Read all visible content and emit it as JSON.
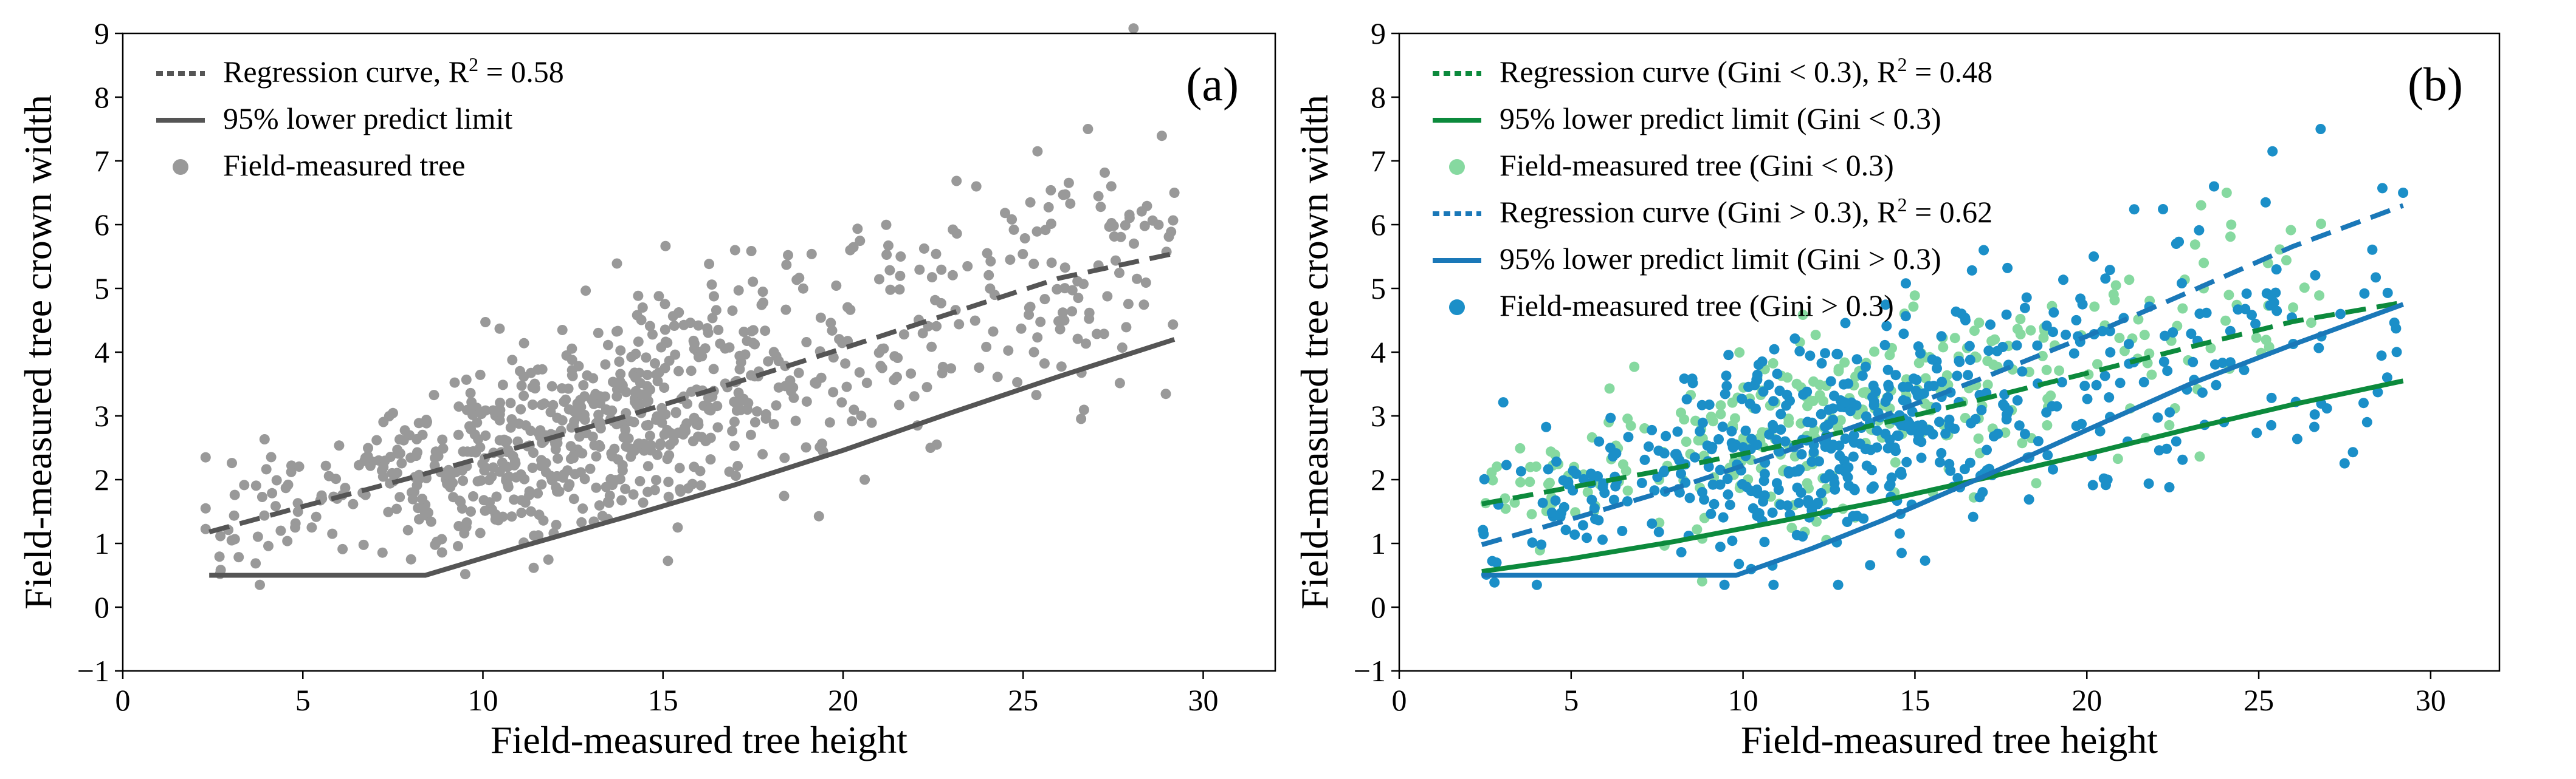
{
  "chart_data": [
    {
      "type": "scatter",
      "panel_label": "(a)",
      "xlabel": "Field-measured tree height",
      "ylabel": "Field-measured tree crown width",
      "xlim": [
        0,
        32
      ],
      "ylim": [
        -1,
        9
      ],
      "xticks": [
        0,
        5,
        10,
        15,
        20,
        25,
        30
      ],
      "yticks": [
        -1,
        0,
        1,
        2,
        3,
        4,
        5,
        6,
        7,
        8,
        9
      ],
      "grid": false,
      "legend_position": "top-left",
      "legend": [
        {
          "label": "Regression curve, R",
          "sup": "2",
          "suffix": " = 0.58",
          "style": "dotted",
          "color": "#555555"
        },
        {
          "label": " 95% lower predict limit",
          "style": "solid",
          "color": "#555555"
        },
        {
          "label": "Field-measured tree",
          "style": "marker",
          "color": "#999999"
        }
      ],
      "series": [
        {
          "name": "Regression curve",
          "kind": "line",
          "style": "dashed",
          "color": "#555555",
          "x": [
            2.4,
            5,
            8,
            11,
            14,
            17,
            20,
            23,
            26,
            29.2
          ],
          "y": [
            1.18,
            1.58,
            2.03,
            2.51,
            3.0,
            3.52,
            4.06,
            4.61,
            5.16,
            5.55
          ]
        },
        {
          "name": "95% lower predict limit",
          "kind": "line",
          "style": "solid",
          "color": "#555555",
          "x": [
            2.4,
            8.4,
            11,
            14,
            17,
            20,
            23,
            26,
            29.2
          ],
          "y": [
            0.5,
            0.5,
            0.94,
            1.42,
            1.92,
            2.46,
            3.05,
            3.62,
            4.2
          ]
        },
        {
          "name": "Field-measured tree",
          "kind": "scatter",
          "color": "#999999",
          "n": 850,
          "x_range": [
            2.3,
            29.2
          ],
          "seed": 11,
          "center_offset": 0.0,
          "spread": 0.72,
          "outliers": [
            [
              26.8,
              7.5
            ],
            [
              29.2,
              6.5
            ],
            [
              25.4,
              7.15
            ],
            [
              23.7,
              6.6
            ],
            [
              25.2,
              6.35
            ],
            [
              21.6,
              5.5
            ],
            [
              20.2,
              5.6
            ],
            [
              17.0,
              5.6
            ],
            [
              2.3,
              1.55
            ],
            [
              25.3,
              4.0
            ],
            [
              22.6,
              2.55
            ],
            [
              20.6,
              2.0
            ]
          ]
        }
      ]
    },
    {
      "type": "scatter",
      "panel_label": "(b)",
      "xlabel": "Field-measured tree height",
      "ylabel": "Field-measured tree crown width",
      "xlim": [
        0,
        32
      ],
      "ylim": [
        -1,
        9
      ],
      "xticks": [
        0,
        5,
        10,
        15,
        20,
        25,
        30
      ],
      "yticks": [
        -1,
        0,
        1,
        2,
        3,
        4,
        5,
        6,
        7,
        8,
        9
      ],
      "grid": false,
      "legend_position": "top-left",
      "legend": [
        {
          "label": "Regression curve (Gini < 0.3), R",
          "sup": "2",
          "suffix": " = 0.48",
          "style": "dotted",
          "color": "#0c8a3c"
        },
        {
          "label": "95% lower predict limit (Gini < 0.3)",
          "style": "solid",
          "color": "#0c8a3c"
        },
        {
          "label": "Field-measured tree (Gini < 0.3)",
          "style": "marker",
          "color": "#86d9a0"
        },
        {
          "label": "Regression curve (Gini > 0.3), R",
          "sup": "2",
          "suffix": " = 0.62",
          "style": "dotted",
          "color": "#1a78b8"
        },
        {
          "label": "95% lower predict limit (Gini > 0.3)",
          "style": "solid",
          "color": "#1a78b8"
        },
        {
          "label": "Field-measured tree (Gini > 0.3)",
          "style": "marker",
          "color": "#1b8fc8"
        }
      ],
      "series": [
        {
          "name": "Field-measured tree (Gini < 0.3)",
          "kind": "scatter",
          "color": "#86d9a0",
          "n": 330,
          "x_range": [
            2.5,
            27
          ],
          "seed": 23,
          "center_offset": 0.25,
          "spread": 0.6,
          "outliers": [
            [
              24.2,
              6.0
            ],
            [
              23.4,
              5.4
            ],
            [
              26.0,
              4.7
            ]
          ]
        },
        {
          "name": "Field-measured tree (Gini > 0.3)",
          "kind": "scatter",
          "color": "#1b8fc8",
          "n": 560,
          "x_range": [
            2.3,
            29.2
          ],
          "seed": 37,
          "center_offset": -0.05,
          "spread": 0.78,
          "outliers": [
            [
              26.8,
              7.5
            ],
            [
              29.2,
              6.5
            ],
            [
              25.4,
              7.15
            ],
            [
              23.7,
              6.6
            ],
            [
              25.2,
              6.35
            ],
            [
              22.6,
              5.7
            ],
            [
              20.2,
              5.5
            ],
            [
              17.0,
              5.6
            ],
            [
              22.6,
              2.6
            ],
            [
              20.6,
              2.0
            ],
            [
              8.6,
              2.35
            ]
          ]
        },
        {
          "name": "Regression curve (Gini < 0.3)",
          "kind": "line",
          "style": "dashed",
          "color": "#0c8a3c",
          "x": [
            2.4,
            5,
            8,
            11,
            14,
            17,
            20,
            23,
            26,
            29.2
          ],
          "y": [
            1.62,
            1.88,
            2.18,
            2.52,
            2.88,
            3.27,
            3.67,
            4.08,
            4.48,
            4.78
          ]
        },
        {
          "name": "95% lower predict limit (Gini < 0.3)",
          "kind": "line",
          "style": "solid",
          "color": "#0c8a3c",
          "x": [
            2.4,
            5,
            8,
            11,
            14,
            17,
            20,
            23,
            26,
            29.2
          ],
          "y": [
            0.56,
            0.76,
            1.03,
            1.34,
            1.66,
            2.02,
            2.4,
            2.8,
            3.18,
            3.55
          ]
        },
        {
          "name": "Regression curve (Gini > 0.3)",
          "kind": "line",
          "style": "dashed",
          "color": "#1a78b8",
          "x": [
            2.4,
            5,
            8,
            11,
            14,
            17,
            20,
            23,
            26,
            29.2
          ],
          "y": [
            0.98,
            1.38,
            1.86,
            2.4,
            2.98,
            3.6,
            4.25,
            4.95,
            5.66,
            6.3
          ]
        },
        {
          "name": "95% lower predict limit (Gini > 0.3)",
          "kind": "line",
          "style": "solid",
          "color": "#1a78b8",
          "x": [
            2.4,
            9.8,
            12,
            14,
            17,
            20,
            23,
            26,
            29.2
          ],
          "y": [
            0.5,
            0.5,
            0.92,
            1.35,
            2.05,
            2.78,
            3.5,
            4.12,
            4.75
          ]
        }
      ]
    }
  ]
}
